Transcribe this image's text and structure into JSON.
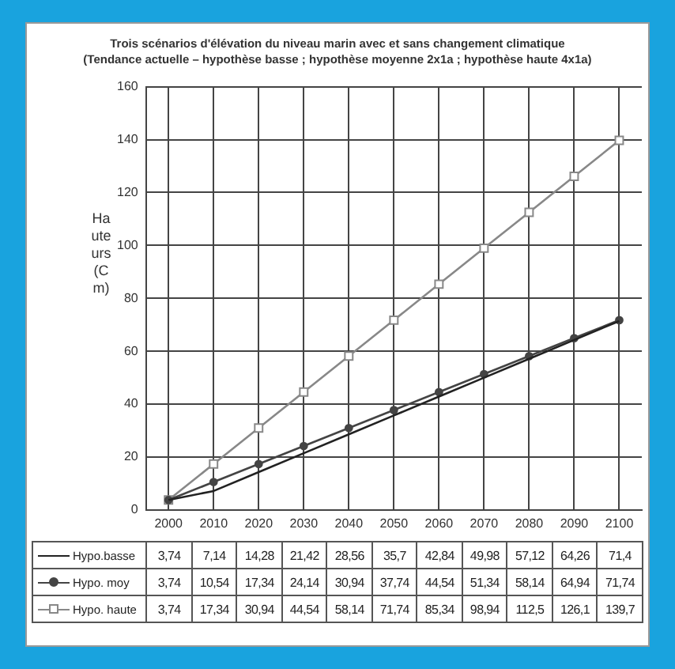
{
  "chart_data": {
    "type": "line",
    "title": "Trois scénarios d'élévation du niveau marin avec et sans changement climatique",
    "subtitle": "(Tendance actuelle – hypothèse basse ; hypothèse moyenne 2x1a ; hypothèse haute 4x1a)",
    "ylabel": "Hauteurs (Cm)",
    "categories": [
      "2000",
      "2010",
      "2020",
      "2030",
      "2040",
      "2050",
      "2060",
      "2070",
      "2080",
      "2090",
      "2100"
    ],
    "series": [
      {
        "name": "Hypo.basse",
        "color": "#222222",
        "marker": "none",
        "values": [
          3.74,
          7.14,
          14.28,
          21.42,
          28.56,
          35.7,
          42.84,
          49.98,
          57.12,
          64.26,
          71.4
        ],
        "value_labels": [
          "3,74",
          "7,14",
          "14,28",
          "21,42",
          "28,56",
          "35,7",
          "42,84",
          "49,98",
          "57,12",
          "64,26",
          "71,4"
        ]
      },
      {
        "name": "Hypo. moy",
        "color": "#444444",
        "marker": "circle",
        "values": [
          3.74,
          10.54,
          17.34,
          24.14,
          30.94,
          37.74,
          44.54,
          51.34,
          58.14,
          64.94,
          71.74
        ],
        "value_labels": [
          "3,74",
          "10,54",
          "17,34",
          "24,14",
          "30,94",
          "37,74",
          "44,54",
          "51,34",
          "58,14",
          "64,94",
          "71,74"
        ]
      },
      {
        "name": "Hypo. haute",
        "color": "#888888",
        "marker": "square",
        "values": [
          3.74,
          17.34,
          30.94,
          44.54,
          58.14,
          71.74,
          85.34,
          98.94,
          112.5,
          126.1,
          139.7
        ],
        "value_labels": [
          "3,74",
          "17,34",
          "30,94",
          "44,54",
          "58,14",
          "71,74",
          "85,34",
          "98,94",
          "112,5",
          "126,1",
          "139,7"
        ]
      }
    ],
    "ylim": [
      0,
      160
    ],
    "yticks": [
      0,
      20,
      40,
      60,
      80,
      100,
      120,
      140,
      160
    ],
    "grid": true,
    "legend": "bottom"
  }
}
